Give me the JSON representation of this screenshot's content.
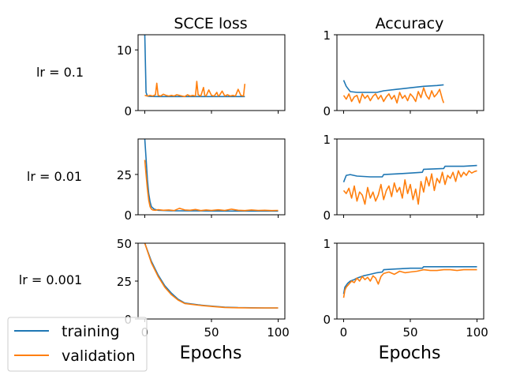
{
  "figure": {
    "column_titles": [
      "SCCE loss",
      "Accuracy"
    ],
    "row_labels": [
      "lr = 0.1",
      "lr = 0.01",
      "lr = 0.001"
    ],
    "xlabel": "Epochs",
    "x_ticks": [
      0,
      50,
      100
    ],
    "legend": {
      "placement": "bottom-left",
      "entries": [
        {
          "label": "training",
          "color": "#1f77b4"
        },
        {
          "label": "validation",
          "color": "#ff7f0e"
        }
      ]
    }
  },
  "chart_data": [
    {
      "type": "line",
      "row": "lr = 0.1",
      "title": "SCCE loss",
      "xlim": [
        -5,
        105
      ],
      "ylim": [
        0,
        12.5
      ],
      "yticks": [
        0,
        10
      ],
      "xtick_labels_shown": false,
      "series": [
        {
          "name": "training",
          "color": "#1f77b4",
          "x": [
            0,
            1,
            2,
            3,
            5,
            10,
            20,
            30,
            40,
            50,
            60,
            70,
            75
          ],
          "y": [
            12.5,
            3.0,
            2.4,
            2.35,
            2.32,
            2.3,
            2.3,
            2.3,
            2.3,
            2.3,
            2.3,
            2.3,
            2.3
          ]
        },
        {
          "name": "validation",
          "color": "#ff7f0e",
          "x": [
            0,
            2,
            4,
            6,
            8,
            9,
            10,
            12,
            14,
            16,
            18,
            20,
            22,
            24,
            26,
            28,
            30,
            32,
            34,
            36,
            38,
            39,
            40,
            42,
            44,
            45,
            46,
            48,
            50,
            52,
            54,
            55,
            56,
            58,
            60,
            62,
            64,
            66,
            68,
            70,
            72,
            74,
            75
          ],
          "y": [
            2.5,
            2.4,
            2.5,
            2.4,
            2.6,
            4.5,
            2.5,
            2.4,
            2.7,
            2.5,
            2.4,
            2.5,
            2.4,
            2.6,
            2.5,
            2.4,
            2.3,
            2.6,
            2.4,
            2.5,
            2.4,
            4.8,
            2.6,
            2.4,
            3.8,
            2.5,
            2.4,
            3.4,
            2.5,
            2.4,
            3.0,
            2.4,
            2.5,
            3.2,
            2.4,
            2.6,
            2.4,
            2.5,
            2.4,
            3.5,
            2.5,
            2.4,
            4.4
          ]
        }
      ]
    },
    {
      "type": "line",
      "row": "lr = 0.1",
      "title": "Accuracy",
      "xlim": [
        -5,
        105
      ],
      "ylim": [
        0,
        1.0
      ],
      "yticks": [
        0,
        1
      ],
      "xtick_labels_shown": false,
      "series": [
        {
          "name": "training",
          "color": "#1f77b4",
          "x": [
            0,
            2,
            5,
            10,
            20,
            25,
            30,
            40,
            50,
            60,
            70,
            75
          ],
          "y": [
            0.4,
            0.32,
            0.25,
            0.24,
            0.24,
            0.24,
            0.26,
            0.28,
            0.3,
            0.32,
            0.33,
            0.34
          ]
        },
        {
          "name": "validation",
          "color": "#ff7f0e",
          "x": [
            0,
            2,
            4,
            6,
            8,
            10,
            12,
            14,
            16,
            18,
            20,
            22,
            24,
            26,
            28,
            30,
            32,
            34,
            36,
            38,
            40,
            42,
            44,
            46,
            48,
            50,
            52,
            54,
            56,
            58,
            60,
            62,
            64,
            66,
            68,
            70,
            72,
            74,
            75
          ],
          "y": [
            0.2,
            0.15,
            0.22,
            0.12,
            0.18,
            0.2,
            0.1,
            0.22,
            0.16,
            0.2,
            0.13,
            0.19,
            0.22,
            0.15,
            0.2,
            0.12,
            0.18,
            0.22,
            0.15,
            0.2,
            0.1,
            0.24,
            0.16,
            0.2,
            0.13,
            0.22,
            0.18,
            0.12,
            0.25,
            0.17,
            0.3,
            0.2,
            0.15,
            0.26,
            0.18,
            0.22,
            0.28,
            0.15,
            0.1
          ]
        }
      ]
    },
    {
      "type": "line",
      "row": "lr = 0.01",
      "title": "SCCE loss",
      "xlim": [
        -5,
        105
      ],
      "ylim": [
        0,
        47
      ],
      "yticks": [
        0,
        25
      ],
      "xtick_labels_shown": false,
      "series": [
        {
          "name": "training",
          "color": "#1f77b4",
          "x": [
            0,
            1,
            2,
            3,
            4,
            5,
            7,
            10,
            20,
            40,
            60,
            80,
            100
          ],
          "y": [
            47,
            35,
            22,
            13,
            8,
            5,
            3.5,
            2.8,
            2.5,
            2.4,
            2.3,
            2.3,
            2.3
          ]
        },
        {
          "name": "validation",
          "color": "#ff7f0e",
          "x": [
            0,
            1,
            2,
            3,
            4,
            5,
            6,
            8,
            10,
            14,
            18,
            22,
            26,
            30,
            34,
            38,
            42,
            46,
            50,
            55,
            60,
            65,
            70,
            75,
            80,
            85,
            90,
            95,
            100
          ],
          "y": [
            34,
            25,
            16,
            9,
            5,
            3.5,
            3.0,
            2.8,
            3.2,
            2.8,
            3.0,
            2.6,
            4.0,
            3.0,
            2.8,
            3.3,
            2.6,
            3.0,
            2.7,
            3.1,
            2.7,
            3.5,
            2.8,
            2.6,
            3.0,
            2.7,
            2.8,
            2.6,
            2.7
          ]
        }
      ]
    },
    {
      "type": "line",
      "row": "lr = 0.01",
      "title": "Accuracy",
      "xlim": [
        -5,
        105
      ],
      "ylim": [
        0,
        1.0
      ],
      "yticks": [
        0,
        1
      ],
      "xtick_labels_shown": false,
      "series": [
        {
          "name": "training",
          "color": "#1f77b4",
          "x": [
            0,
            2,
            5,
            10,
            20,
            29,
            30,
            40,
            50,
            59,
            60,
            75,
            76,
            90,
            100
          ],
          "y": [
            0.43,
            0.52,
            0.53,
            0.51,
            0.5,
            0.5,
            0.53,
            0.54,
            0.55,
            0.56,
            0.6,
            0.61,
            0.64,
            0.64,
            0.65
          ]
        },
        {
          "name": "validation",
          "color": "#ff7f0e",
          "x": [
            0,
            2,
            4,
            6,
            8,
            10,
            12,
            14,
            16,
            18,
            20,
            22,
            24,
            26,
            28,
            30,
            32,
            34,
            36,
            38,
            40,
            42,
            44,
            46,
            48,
            50,
            52,
            54,
            56,
            58,
            60,
            62,
            64,
            66,
            68,
            70,
            72,
            74,
            76,
            78,
            80,
            82,
            84,
            86,
            88,
            90,
            92,
            94,
            96,
            98,
            100
          ],
          "y": [
            0.32,
            0.28,
            0.35,
            0.22,
            0.38,
            0.18,
            0.3,
            0.26,
            0.14,
            0.36,
            0.22,
            0.3,
            0.18,
            0.26,
            0.4,
            0.2,
            0.32,
            0.38,
            0.24,
            0.42,
            0.3,
            0.36,
            0.22,
            0.46,
            0.28,
            0.4,
            0.2,
            0.34,
            0.14,
            0.44,
            0.3,
            0.5,
            0.38,
            0.54,
            0.32,
            0.48,
            0.42,
            0.56,
            0.4,
            0.52,
            0.48,
            0.56,
            0.44,
            0.58,
            0.5,
            0.56,
            0.52,
            0.58,
            0.55,
            0.57,
            0.58
          ]
        }
      ]
    },
    {
      "type": "line",
      "row": "lr = 0.001",
      "title": "SCCE loss",
      "xlim": [
        -5,
        105
      ],
      "ylim": [
        0,
        50
      ],
      "yticks": [
        0,
        25,
        50
      ],
      "xtick_labels_shown": true,
      "series": [
        {
          "name": "training",
          "color": "#1f77b4",
          "x": [
            0,
            5,
            10,
            15,
            20,
            25,
            30,
            40,
            50,
            60,
            70,
            80,
            90,
            100
          ],
          "y": [
            50,
            38,
            29,
            22,
            17,
            13,
            10.5,
            9.3,
            8.5,
            7.8,
            7.5,
            7.4,
            7.3,
            7.3
          ]
        },
        {
          "name": "validation",
          "color": "#ff7f0e",
          "x": [
            0,
            5,
            10,
            15,
            20,
            25,
            30,
            40,
            50,
            60,
            70,
            80,
            90,
            100
          ],
          "y": [
            50,
            37,
            28,
            21,
            16,
            12.5,
            10.2,
            9.1,
            8.3,
            7.6,
            7.4,
            7.3,
            7.3,
            7.3
          ]
        }
      ]
    },
    {
      "type": "line",
      "row": "lr = 0.001",
      "title": "Accuracy",
      "xlim": [
        -5,
        105
      ],
      "ylim": [
        0,
        1.0
      ],
      "yticks": [
        0,
        1
      ],
      "xtick_labels_shown": true,
      "series": [
        {
          "name": "training",
          "color": "#1f77b4",
          "x": [
            0,
            1,
            3,
            5,
            8,
            10,
            15,
            20,
            25,
            29,
            30,
            40,
            50,
            59,
            60,
            70,
            80,
            90,
            100
          ],
          "y": [
            0.33,
            0.42,
            0.47,
            0.5,
            0.52,
            0.54,
            0.57,
            0.59,
            0.61,
            0.62,
            0.65,
            0.66,
            0.67,
            0.67,
            0.69,
            0.69,
            0.69,
            0.69,
            0.69
          ]
        },
        {
          "name": "validation",
          "color": "#ff7f0e",
          "x": [
            0,
            1,
            2,
            4,
            6,
            8,
            10,
            12,
            14,
            16,
            18,
            20,
            22,
            24,
            26,
            28,
            30,
            34,
            38,
            42,
            46,
            50,
            55,
            60,
            65,
            70,
            75,
            80,
            85,
            90,
            95,
            100
          ],
          "y": [
            0.28,
            0.38,
            0.42,
            0.46,
            0.5,
            0.48,
            0.54,
            0.5,
            0.56,
            0.52,
            0.55,
            0.5,
            0.57,
            0.54,
            0.46,
            0.56,
            0.6,
            0.62,
            0.59,
            0.63,
            0.61,
            0.62,
            0.63,
            0.65,
            0.64,
            0.64,
            0.65,
            0.65,
            0.64,
            0.65,
            0.65,
            0.65
          ]
        }
      ]
    }
  ]
}
